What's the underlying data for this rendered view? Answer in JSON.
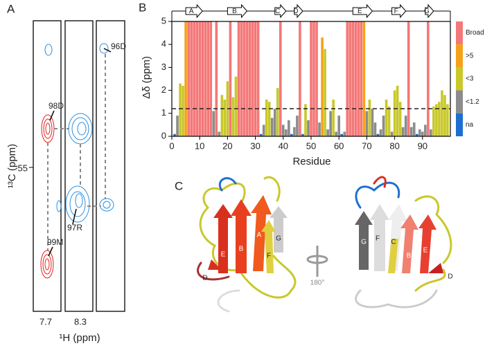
{
  "panel_a": {
    "label": "A",
    "peaks": [
      "96D",
      "98D",
      "97R",
      "99M"
    ],
    "y_tick": 55,
    "x_ticks": [
      7.7,
      8.3
    ],
    "y_title": "¹³C (ppm)",
    "x_title": "¹H (ppm)"
  },
  "panel_c": {
    "label": "C",
    "rotation": "180°",
    "strands_left": [
      "E",
      "B",
      "A",
      "G",
      "F",
      "D"
    ],
    "strands_right": [
      "G",
      "F",
      "C",
      "B",
      "E",
      "D"
    ]
  },
  "chart_data": {
    "type": "bar",
    "label": "B",
    "y_title": "Δδ (ppm)",
    "x_title": "Residue",
    "x": [
      1,
      2,
      3,
      4,
      5,
      6,
      7,
      8,
      9,
      10,
      11,
      12,
      13,
      14,
      15,
      16,
      17,
      18,
      19,
      20,
      21,
      22,
      23,
      24,
      25,
      26,
      27,
      28,
      29,
      30,
      31,
      32,
      33,
      34,
      35,
      36,
      37,
      38,
      39,
      40,
      41,
      42,
      43,
      44,
      45,
      46,
      47,
      48,
      49,
      50,
      51,
      52,
      53,
      54,
      55,
      56,
      57,
      58,
      59,
      60,
      61,
      62,
      63,
      64,
      65,
      66,
      67,
      68,
      69,
      70,
      71,
      72,
      73,
      74,
      75,
      76,
      77,
      78,
      79,
      80,
      81,
      82,
      83,
      84,
      85,
      86,
      87,
      88,
      89,
      90,
      91,
      92,
      93,
      94,
      95,
      96,
      97,
      98,
      99
    ],
    "values": [
      0.1,
      0.9,
      2.3,
      2.2,
      5,
      5,
      5,
      5,
      5,
      5,
      5,
      5,
      5,
      5,
      1.1,
      5,
      0.2,
      1.8,
      1.6,
      2.4,
      5,
      1.7,
      2.6,
      5,
      5,
      5,
      5,
      5,
      5,
      5,
      5,
      0.1,
      0.5,
      1.6,
      1.5,
      0.8,
      1.2,
      2.1,
      5,
      0.5,
      0.3,
      0.7,
      0.1,
      0.4,
      0.9,
      5,
      0.1,
      1.4,
      0.7,
      5,
      5,
      5,
      0.6,
      4.3,
      3.8,
      0.3,
      1.1,
      1.6,
      0.2,
      0.9,
      0.1,
      0.2,
      5,
      5,
      5,
      5,
      5,
      5,
      5,
      1.1,
      1.6,
      1.2,
      0.6,
      0.1,
      0.3,
      0.9,
      1.6,
      1.3,
      0.2,
      2.0,
      2.2,
      1.5,
      0.4,
      0.9,
      5,
      0.4,
      0.6,
      0.1,
      0.3,
      0.2,
      0.5,
      5,
      0.3,
      1.3,
      1.4,
      1.5,
      2.0,
      1.8,
      1.4
    ],
    "classes": [
      4,
      3,
      2,
      2,
      1,
      0,
      0,
      0,
      0,
      0,
      0,
      0,
      0,
      0,
      3,
      0,
      3,
      2,
      2,
      2,
      0,
      2,
      2,
      0,
      0,
      0,
      0,
      0,
      0,
      0,
      0,
      4,
      3,
      2,
      2,
      3,
      3,
      2,
      0,
      3,
      3,
      3,
      4,
      3,
      3,
      0,
      4,
      2,
      3,
      0,
      0,
      0,
      3,
      1,
      2,
      3,
      3,
      2,
      3,
      3,
      4,
      3,
      0,
      0,
      0,
      0,
      0,
      0,
      1,
      3,
      2,
      3,
      3,
      4,
      3,
      3,
      2,
      2,
      3,
      2,
      2,
      2,
      3,
      3,
      0,
      3,
      3,
      4,
      3,
      3,
      3,
      0,
      3,
      2,
      2,
      2,
      2,
      2,
      2
    ],
    "legend": [
      {
        "name": "Broad",
        "color": "#f47878"
      },
      {
        "name": ">5",
        "color": "#f5a21a"
      },
      {
        "name": "<3",
        "color": "#c8c82a"
      },
      {
        "name": "<1.2",
        "color": "#8c8c8c"
      },
      {
        "name": "na",
        "color": "#1e6fd0"
      }
    ],
    "threshold": 1.2,
    "strands": [
      {
        "label": "A",
        "start": 5,
        "end": 11
      },
      {
        "label": "B",
        "start": 20,
        "end": 27
      },
      {
        "label": "C",
        "start": 37,
        "end": 41
      },
      {
        "label": "D",
        "start": 44,
        "end": 47
      },
      {
        "label": "E",
        "start": 65,
        "end": 72
      },
      {
        "label": "F",
        "start": 79,
        "end": 84
      },
      {
        "label": "G",
        "start": 91,
        "end": 94
      }
    ],
    "xlim": [
      0,
      100
    ],
    "ylim": [
      0,
      5
    ],
    "xticks": [
      0,
      10,
      20,
      30,
      40,
      50,
      60,
      70,
      80,
      90
    ],
    "yticks": [
      0,
      1,
      2,
      3,
      4,
      5
    ]
  }
}
